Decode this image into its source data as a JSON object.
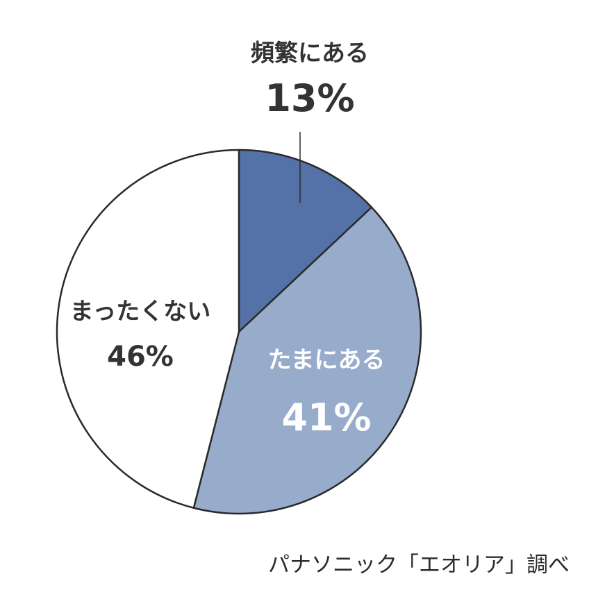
{
  "chart_data": {
    "type": "pie",
    "start_angle": "12 o'clock, clockwise",
    "slices": [
      {
        "label": "頻繁にある",
        "value": 13,
        "value_label": "13%",
        "color": "#5572a8",
        "label_color": "#333333"
      },
      {
        "label": "たまにある",
        "value": 41,
        "value_label": "41%",
        "color": "#97abca",
        "label_color": "#ffffff"
      },
      {
        "label": "まったくない",
        "value": 46,
        "value_label": "46%",
        "color": "#ffffff",
        "label_color": "#333333"
      }
    ]
  },
  "source": "パナソニック「エオリア」調べ"
}
